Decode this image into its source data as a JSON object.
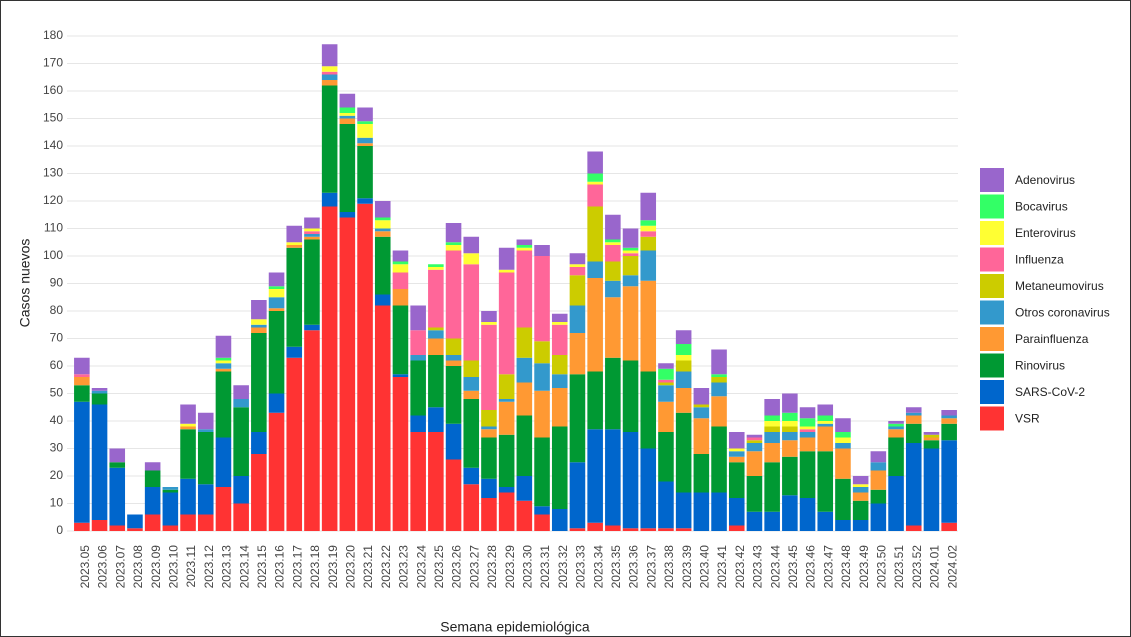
{
  "chart_data": {
    "type": "stacked_bar",
    "x_label": "Semana epidemiológica",
    "y_label": "Casos nuevos",
    "categories": [
      "2023.05",
      "2023.06",
      "2023.07",
      "2023.08",
      "2023.09",
      "2023.10",
      "2023.11",
      "2023.12",
      "2023.13",
      "2023.14",
      "2023.15",
      "2023.16",
      "2023.17",
      "2023.18",
      "2023.19",
      "2023.20",
      "2023.21",
      "2023.22",
      "2023.23",
      "2023.24",
      "2023.25",
      "2023.26",
      "2023.27",
      "2023.28",
      "2023.29",
      "2023.30",
      "2023.31",
      "2023.32",
      "2023.33",
      "2023.34",
      "2023.35",
      "2023.36",
      "2023.37",
      "2023.38",
      "2023.39",
      "2023.40",
      "2023.41",
      "2023.42",
      "2023.43",
      "2023.44",
      "2023.45",
      "2023.46",
      "2023.47",
      "2023.48",
      "2023.49",
      "2023.50",
      "2023.51",
      "2023.52",
      "2024.01",
      "2024.02"
    ],
    "series": [
      {
        "name": "VSR",
        "color": "#ff3333",
        "values": [
          3,
          4,
          2,
          1,
          6,
          2,
          6,
          6,
          16,
          10,
          28,
          43,
          63,
          73,
          118,
          114,
          119,
          82,
          56,
          36,
          36,
          26,
          17,
          12,
          14,
          11,
          6,
          0,
          1,
          3,
          2,
          1,
          1,
          1,
          1,
          0,
          0,
          2,
          0,
          0,
          0,
          0,
          0,
          0,
          0,
          0,
          0,
          2,
          0,
          3
        ]
      },
      {
        "name": "SARS-CoV-2",
        "color": "#0066cc",
        "values": [
          44,
          42,
          21,
          5,
          10,
          12,
          13,
          11,
          18,
          10,
          8,
          7,
          4,
          2,
          5,
          2,
          2,
          4,
          1,
          6,
          9,
          13,
          6,
          7,
          2,
          9,
          3,
          8,
          24,
          34,
          35,
          35,
          29,
          17,
          13,
          14,
          14,
          10,
          7,
          7,
          13,
          12,
          7,
          4,
          4,
          10,
          20,
          30,
          30,
          30
        ]
      },
      {
        "name": "Rinovirus",
        "color": "#009933",
        "values": [
          6,
          4,
          2,
          0,
          6,
          1,
          18,
          19,
          24,
          25,
          36,
          30,
          36,
          31,
          39,
          32,
          19,
          21,
          25,
          20,
          19,
          21,
          25,
          15,
          19,
          22,
          25,
          30,
          32,
          21,
          26,
          26,
          28,
          18,
          29,
          14,
          24,
          13,
          13,
          18,
          14,
          17,
          22,
          15,
          7,
          5,
          14,
          7,
          3,
          6
        ]
      },
      {
        "name": "Parainfluenza",
        "color": "#ff9933",
        "values": [
          3,
          0,
          0,
          0,
          0,
          0,
          1,
          0,
          1,
          0,
          2,
          1,
          1,
          1,
          2,
          2,
          1,
          2,
          6,
          0,
          6,
          2,
          3,
          3,
          12,
          12,
          17,
          14,
          15,
          34,
          22,
          27,
          33,
          11,
          9,
          13,
          11,
          2,
          9,
          7,
          6,
          5,
          9,
          11,
          3,
          7,
          3,
          3,
          1,
          2
        ]
      },
      {
        "name": "Otros coronavirus",
        "color": "#3399cc",
        "values": [
          0,
          1,
          0,
          0,
          0,
          1,
          0,
          1,
          2,
          3,
          1,
          4,
          0,
          1,
          2,
          1,
          2,
          1,
          0,
          2,
          3,
          2,
          5,
          1,
          1,
          9,
          10,
          5,
          10,
          6,
          6,
          4,
          11,
          6,
          6,
          4,
          5,
          2,
          3,
          4,
          3,
          2,
          1,
          2,
          2,
          3,
          1,
          1,
          0,
          1
        ]
      },
      {
        "name": "Metaneumovirus",
        "color": "#cccc00",
        "values": [
          0,
          0,
          0,
          0,
          0,
          0,
          0,
          0,
          0,
          0,
          0,
          0,
          0,
          0,
          0,
          0,
          0,
          0,
          0,
          0,
          1,
          6,
          6,
          6,
          9,
          11,
          8,
          7,
          11,
          20,
          7,
          7,
          5,
          1,
          4,
          1,
          2,
          0,
          1,
          2,
          2,
          0,
          0,
          0,
          0,
          0,
          0,
          0,
          1,
          0
        ]
      },
      {
        "name": "Influenza",
        "color": "#ff6699",
        "values": [
          1,
          0,
          0,
          0,
          0,
          0,
          0,
          0,
          0,
          0,
          0,
          0,
          0,
          1,
          1,
          0,
          0,
          0,
          6,
          9,
          21,
          32,
          35,
          31,
          37,
          28,
          31,
          11,
          3,
          8,
          6,
          1,
          2,
          1,
          0,
          0,
          0,
          0,
          1,
          0,
          0,
          1,
          0,
          0,
          0,
          0,
          0,
          0,
          0,
          0
        ]
      },
      {
        "name": "Enterovirus",
        "color": "#ffff33",
        "values": [
          0,
          0,
          0,
          0,
          0,
          0,
          1,
          0,
          1,
          0,
          2,
          3,
          1,
          1,
          2,
          1,
          5,
          3,
          3,
          0,
          1,
          2,
          4,
          1,
          1,
          1,
          0,
          1,
          1,
          1,
          1,
          1,
          2,
          0,
          2,
          0,
          0,
          1,
          0,
          2,
          2,
          1,
          1,
          2,
          1,
          0,
          0,
          0,
          0,
          0
        ]
      },
      {
        "name": "Bocavirus",
        "color": "#33ff66",
        "values": [
          0,
          0,
          0,
          0,
          0,
          0,
          0,
          0,
          1,
          0,
          0,
          1,
          0,
          0,
          0,
          2,
          1,
          1,
          1,
          0,
          1,
          1,
          0,
          0,
          0,
          1,
          0,
          0,
          0,
          3,
          1,
          1,
          2,
          4,
          4,
          0,
          1,
          0,
          0,
          2,
          3,
          3,
          2,
          2,
          0,
          0,
          1,
          0,
          0,
          0
        ]
      },
      {
        "name": "Adenovirus",
        "color": "#9966cc",
        "values": [
          6,
          1,
          5,
          0,
          3,
          0,
          7,
          6,
          8,
          5,
          7,
          5,
          6,
          4,
          8,
          5,
          5,
          6,
          4,
          9,
          0,
          7,
          6,
          4,
          8,
          2,
          4,
          3,
          4,
          8,
          9,
          7,
          10,
          2,
          5,
          6,
          9,
          6,
          1,
          6,
          7,
          4,
          4,
          5,
          3,
          4,
          1,
          2,
          1,
          2
        ]
      }
    ],
    "ylim": [
      0,
      180
    ],
    "yticks": [
      0,
      10,
      20,
      30,
      40,
      50,
      60,
      70,
      80,
      90,
      100,
      110,
      120,
      130,
      140,
      150,
      160,
      170,
      180
    ],
    "grid": true,
    "legend": "right"
  }
}
